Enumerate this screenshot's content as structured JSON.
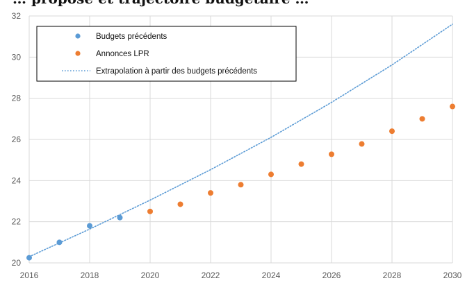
{
  "header_fragment": "… proposé et trajectoire budgétaire …",
  "chart_data": {
    "type": "scatter",
    "title": "",
    "xlabel": "",
    "ylabel": "",
    "xlim": [
      2016,
      2030
    ],
    "ylim": [
      20,
      32
    ],
    "x_ticks": [
      "2016",
      "2018",
      "2020",
      "2022",
      "2024",
      "2026",
      "2028",
      "2030"
    ],
    "y_ticks": [
      "20",
      "22",
      "24",
      "26",
      "28",
      "30",
      "32"
    ],
    "grid": "horizontal",
    "legend_position": "top-left",
    "series": [
      {
        "name": "Budgets précédents",
        "kind": "scatter",
        "color": "#5b9bd5",
        "points": [
          [
            2016,
            20.25
          ],
          [
            2017,
            21.0
          ],
          [
            2018,
            21.8
          ],
          [
            2019,
            22.2
          ]
        ]
      },
      {
        "name": "Annonces LPR",
        "kind": "scatter",
        "color": "#ed7d31",
        "points": [
          [
            2020,
            22.5
          ],
          [
            2021,
            22.85
          ],
          [
            2022,
            23.4
          ],
          [
            2023,
            23.8
          ],
          [
            2024,
            24.3
          ],
          [
            2025,
            24.8
          ],
          [
            2026,
            25.28
          ],
          [
            2027,
            25.78
          ],
          [
            2028,
            26.4
          ],
          [
            2029,
            27.0
          ],
          [
            2030,
            27.6
          ]
        ]
      },
      {
        "name": "Extrapolation à partir des budgets précédents",
        "kind": "dotted-line",
        "color": "#5b9bd5",
        "points": [
          [
            2016,
            20.3
          ],
          [
            2018,
            21.64
          ],
          [
            2020,
            23.05
          ],
          [
            2022,
            24.53
          ],
          [
            2024,
            26.1
          ],
          [
            2026,
            27.8
          ],
          [
            2028,
            29.62
          ],
          [
            2030,
            31.6
          ]
        ]
      }
    ]
  }
}
